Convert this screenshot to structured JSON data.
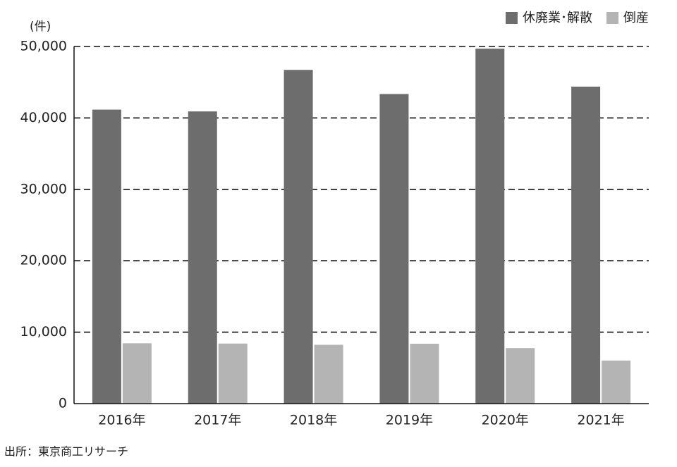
{
  "chart_data": {
    "type": "bar",
    "unit_label": "(件)",
    "source": "出所：東京商工リサーチ",
    "categories": [
      "2016年",
      "2017年",
      "2018年",
      "2019年",
      "2020年",
      "2021年"
    ],
    "series": [
      {
        "name": "休廃業･解散",
        "color": "#6d6d6e",
        "values": [
          41162,
          40909,
          46724,
          43348,
          49698,
          44377
        ]
      },
      {
        "name": "倒産",
        "color": "#b4b4b5",
        "values": [
          8446,
          8405,
          8235,
          8383,
          7773,
          6030
        ]
      }
    ],
    "ylim": [
      0,
      50000
    ],
    "yticks": [
      0,
      {
        "value": 10000,
        "label": "10,000"
      },
      {
        "value": 20000,
        "label": "20,000"
      },
      {
        "value": 30000,
        "label": "30,000"
      },
      {
        "value": 40000,
        "label": "40,000"
      },
      {
        "value": 50000,
        "label": "50,000"
      }
    ],
    "grid": true,
    "legend": "top-right"
  }
}
